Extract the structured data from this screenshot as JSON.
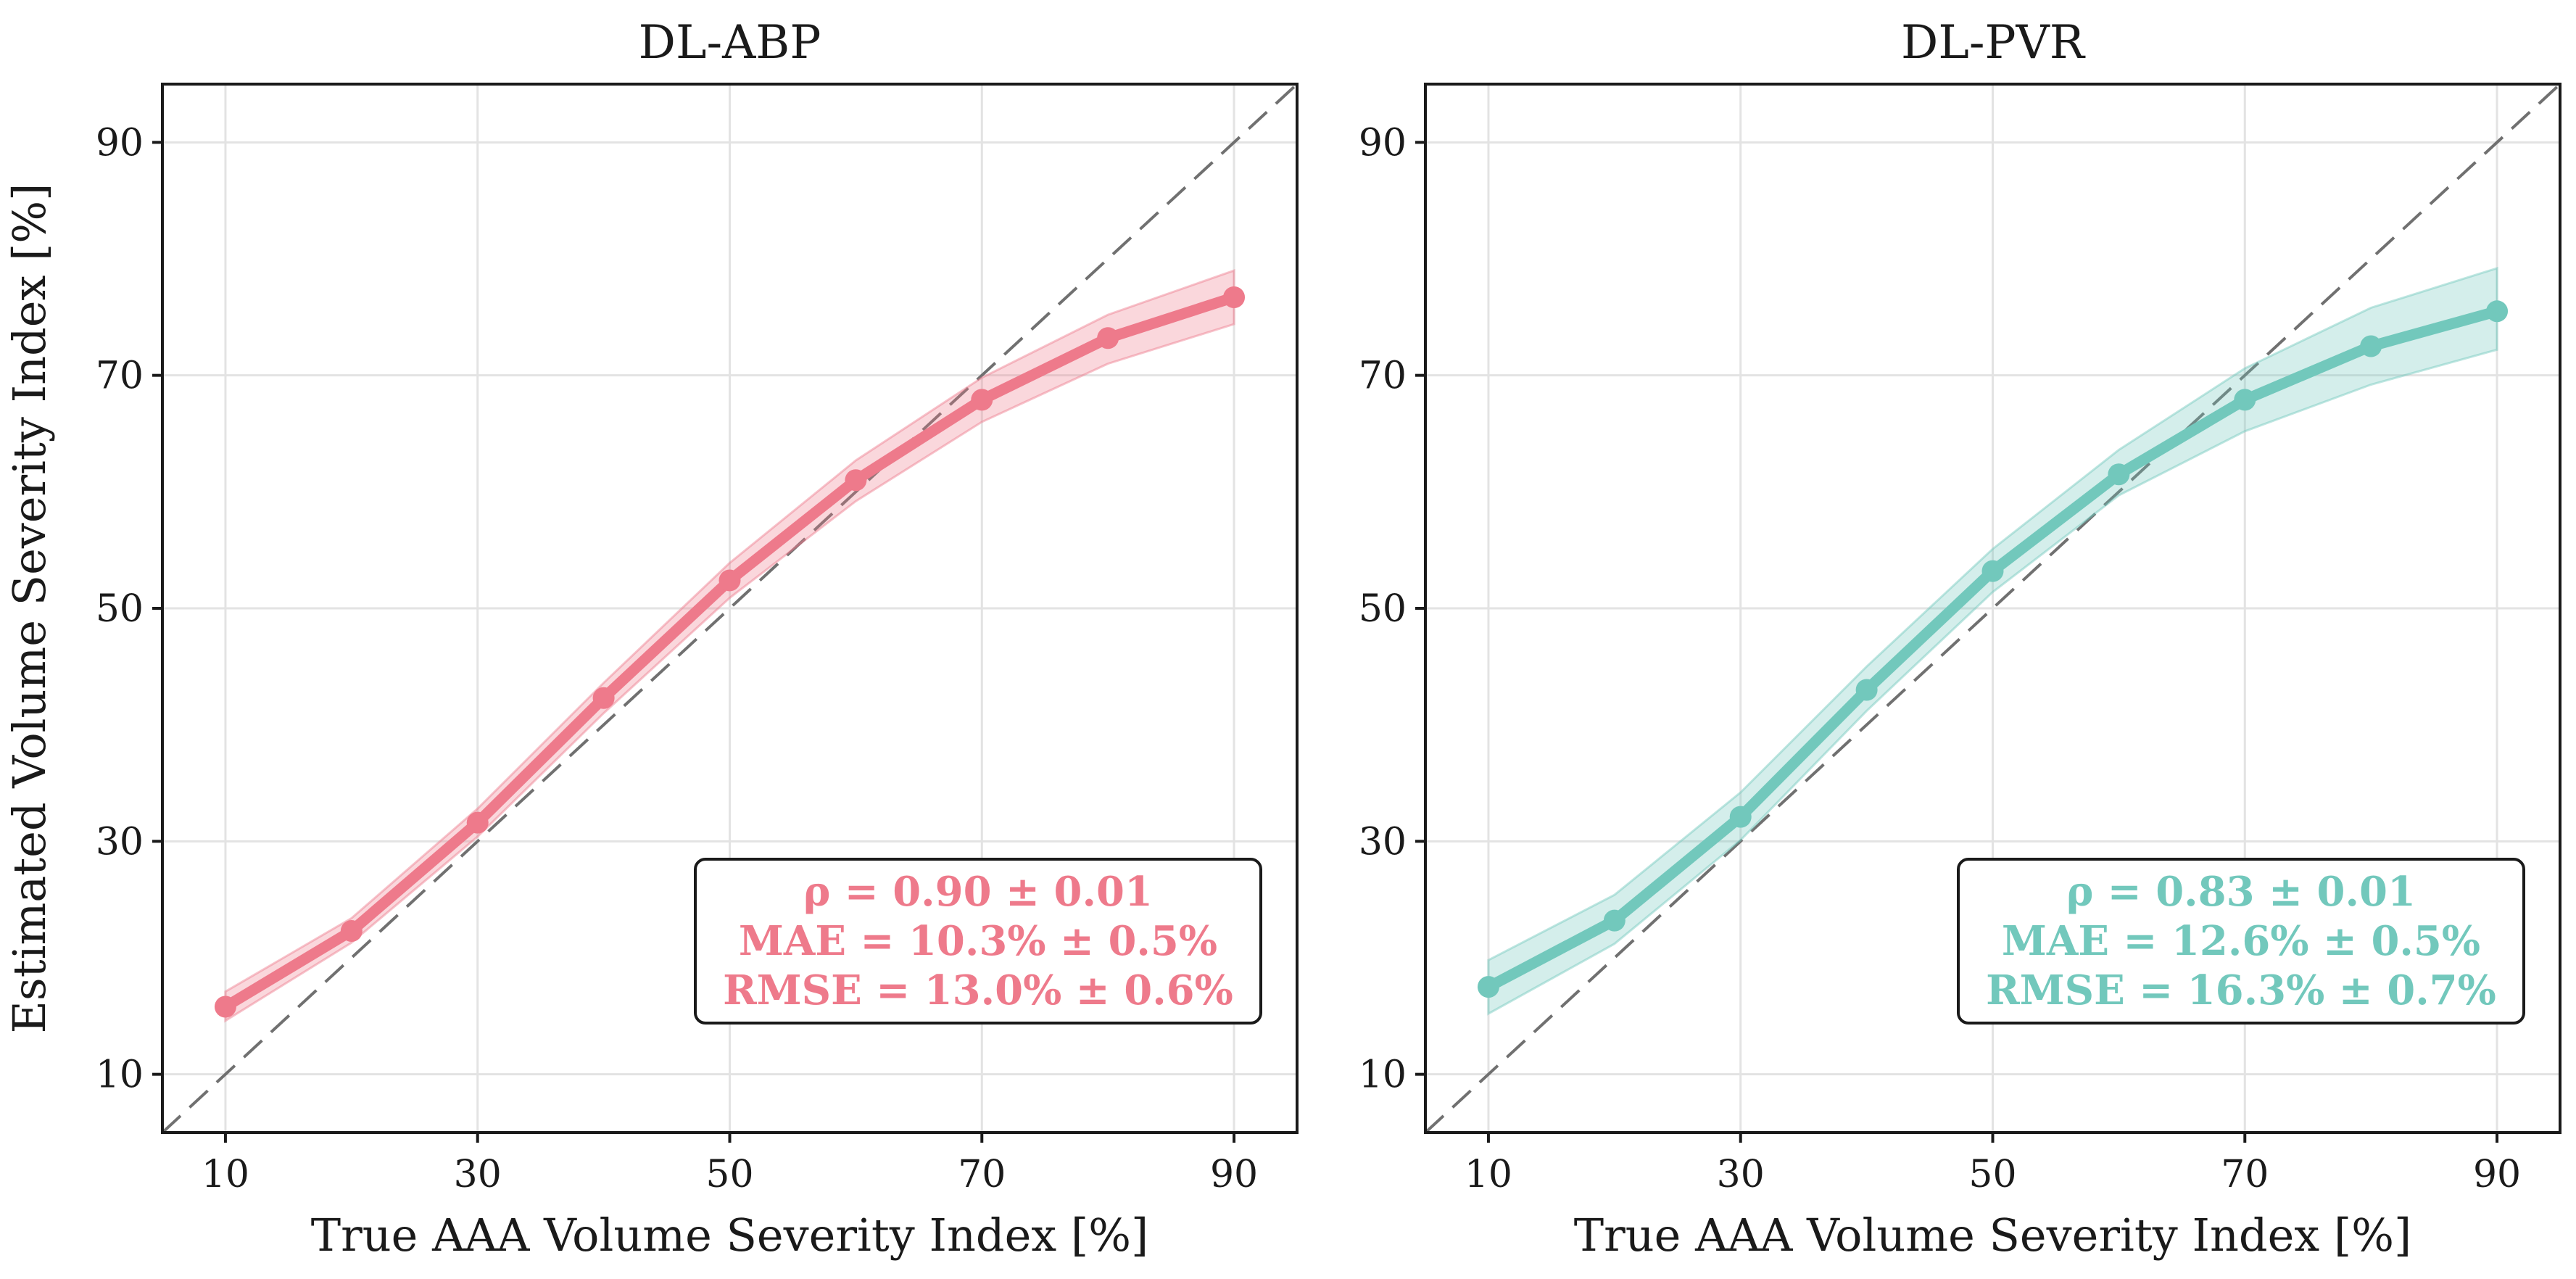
{
  "chart_data": [
    {
      "type": "line",
      "title": "DL-ABP",
      "xlabel": "True AAA Volume Severity Index [%]",
      "ylabel": "Estimated Volume Severity Index [%]",
      "xlim": [
        5,
        95
      ],
      "ylim": [
        5,
        95
      ],
      "xticks": [
        10,
        30,
        50,
        70,
        90
      ],
      "yticks": [
        10,
        30,
        50,
        70,
        90
      ],
      "grid": true,
      "identity_line": true,
      "color": "#EE7A8B",
      "x": [
        10,
        20,
        30,
        40,
        50,
        60,
        70,
        80,
        90
      ],
      "y": [
        15.8,
        22.3,
        31.6,
        42.3,
        52.4,
        61.0,
        67.9,
        73.2,
        76.7
      ],
      "y_lower": [
        14.6,
        21.3,
        30.4,
        41.0,
        50.9,
        59.2,
        66.0,
        71.0,
        74.4
      ],
      "y_upper": [
        17.1,
        23.4,
        32.8,
        43.6,
        53.9,
        62.7,
        69.8,
        75.2,
        79.0
      ],
      "stats": [
        "ρ = 0.90 ± 0.01",
        "MAE = 10.3% ± 0.5%",
        "RMSE = 13.0% ± 0.6%"
      ],
      "stats_box_location": "lower-right"
    },
    {
      "type": "line",
      "title": "DL-PVR",
      "xlabel": "True AAA Volume Severity Index [%]",
      "ylabel": "",
      "xlim": [
        5,
        95
      ],
      "ylim": [
        5,
        95
      ],
      "xticks": [
        10,
        30,
        50,
        70,
        90
      ],
      "yticks": [
        10,
        30,
        50,
        70,
        90
      ],
      "grid": true,
      "identity_line": true,
      "color": "#72C8BC",
      "x": [
        10,
        20,
        30,
        40,
        50,
        60,
        70,
        80,
        90
      ],
      "y": [
        17.5,
        23.2,
        32.1,
        43.0,
        53.2,
        61.5,
        67.9,
        72.5,
        75.5
      ],
      "y_lower": [
        15.2,
        21.2,
        30.1,
        41.2,
        51.4,
        59.7,
        65.2,
        69.2,
        72.2
      ],
      "y_upper": [
        19.8,
        25.4,
        34.2,
        45.0,
        55.1,
        63.6,
        70.6,
        75.8,
        79.2
      ],
      "stats": [
        "ρ = 0.83 ± 0.01",
        "MAE = 12.6% ± 0.5%",
        "RMSE = 16.3% ± 0.7%"
      ],
      "stats_box_location": "lower-right"
    }
  ]
}
